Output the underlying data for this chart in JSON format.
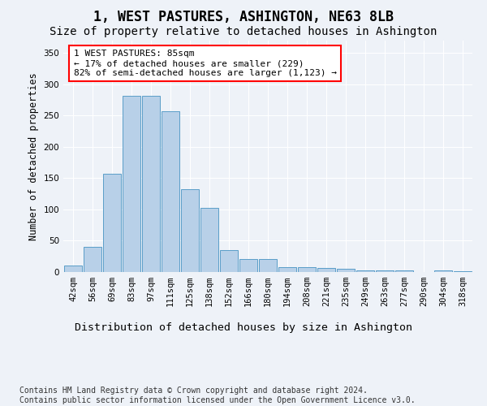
{
  "title": "1, WEST PASTURES, ASHINGTON, NE63 8LB",
  "subtitle": "Size of property relative to detached houses in Ashington",
  "xlabel": "Distribution of detached houses by size in Ashington",
  "ylabel": "Number of detached properties",
  "bar_color": "#b8d0e8",
  "bar_edge_color": "#5a9dc8",
  "background_color": "#eef2f8",
  "grid_color": "#ffffff",
  "categories": [
    "42sqm",
    "56sqm",
    "69sqm",
    "83sqm",
    "97sqm",
    "111sqm",
    "125sqm",
    "138sqm",
    "152sqm",
    "166sqm",
    "180sqm",
    "194sqm",
    "208sqm",
    "221sqm",
    "235sqm",
    "249sqm",
    "263sqm",
    "277sqm",
    "290sqm",
    "304sqm",
    "318sqm"
  ],
  "values": [
    10,
    40,
    157,
    282,
    282,
    257,
    132,
    103,
    35,
    21,
    21,
    8,
    8,
    6,
    5,
    3,
    2,
    2,
    0,
    2,
    1
  ],
  "annotation_text": "1 WEST PASTURES: 85sqm\n← 17% of detached houses are smaller (229)\n82% of semi-detached houses are larger (1,123) →",
  "annotation_box_color": "white",
  "annotation_box_edge_color": "red",
  "ylim": [
    0,
    370
  ],
  "yticks": [
    0,
    50,
    100,
    150,
    200,
    250,
    300,
    350
  ],
  "footer_text": "Contains HM Land Registry data © Crown copyright and database right 2024.\nContains public sector information licensed under the Open Government Licence v3.0.",
  "title_fontsize": 12,
  "subtitle_fontsize": 10,
  "xlabel_fontsize": 9.5,
  "ylabel_fontsize": 8.5,
  "tick_fontsize": 7.5,
  "annotation_fontsize": 8,
  "footer_fontsize": 7
}
